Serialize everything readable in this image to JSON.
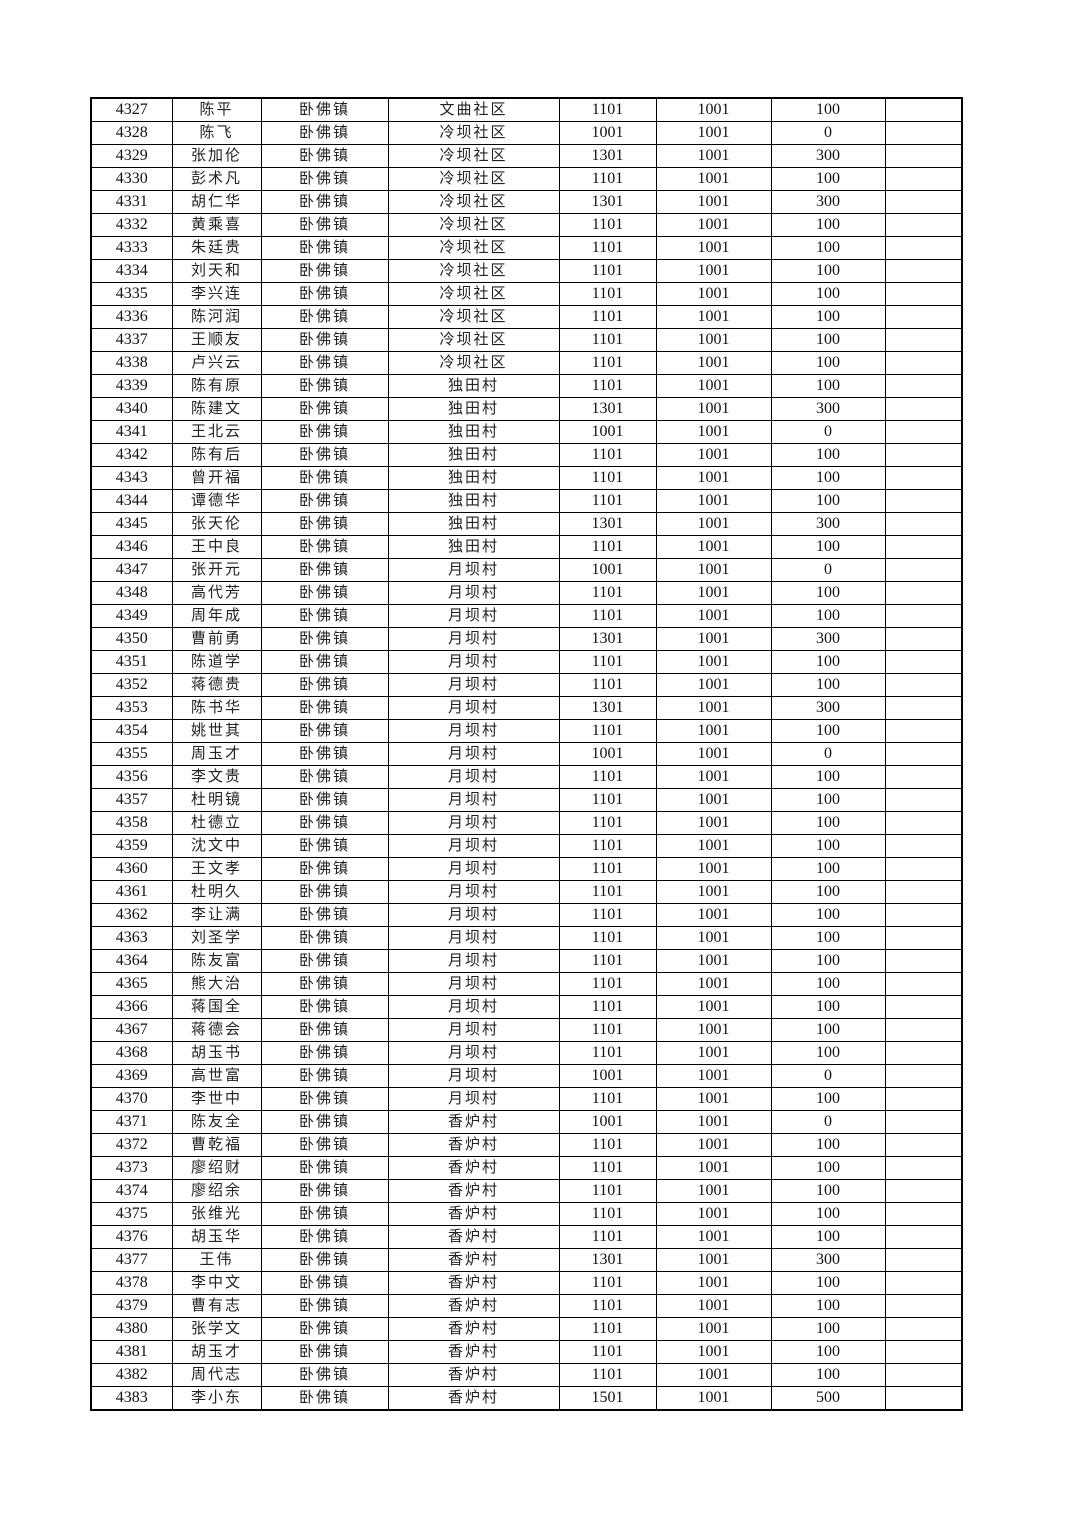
{
  "table": {
    "rows": [
      [
        "4327",
        "陈平",
        "卧佛镇",
        "文曲社区",
        "1101",
        "1001",
        "100",
        ""
      ],
      [
        "4328",
        "陈飞",
        "卧佛镇",
        "冷坝社区",
        "1001",
        "1001",
        "0",
        ""
      ],
      [
        "4329",
        "张加伦",
        "卧佛镇",
        "冷坝社区",
        "1301",
        "1001",
        "300",
        ""
      ],
      [
        "4330",
        "彭术凡",
        "卧佛镇",
        "冷坝社区",
        "1101",
        "1001",
        "100",
        ""
      ],
      [
        "4331",
        "胡仁华",
        "卧佛镇",
        "冷坝社区",
        "1301",
        "1001",
        "300",
        ""
      ],
      [
        "4332",
        "黄乘喜",
        "卧佛镇",
        "冷坝社区",
        "1101",
        "1001",
        "100",
        ""
      ],
      [
        "4333",
        "朱廷贵",
        "卧佛镇",
        "冷坝社区",
        "1101",
        "1001",
        "100",
        ""
      ],
      [
        "4334",
        "刘天和",
        "卧佛镇",
        "冷坝社区",
        "1101",
        "1001",
        "100",
        ""
      ],
      [
        "4335",
        "李兴连",
        "卧佛镇",
        "冷坝社区",
        "1101",
        "1001",
        "100",
        ""
      ],
      [
        "4336",
        "陈河润",
        "卧佛镇",
        "冷坝社区",
        "1101",
        "1001",
        "100",
        ""
      ],
      [
        "4337",
        "王顺友",
        "卧佛镇",
        "冷坝社区",
        "1101",
        "1001",
        "100",
        ""
      ],
      [
        "4338",
        "卢兴云",
        "卧佛镇",
        "冷坝社区",
        "1101",
        "1001",
        "100",
        ""
      ],
      [
        "4339",
        "陈有原",
        "卧佛镇",
        "独田村",
        "1101",
        "1001",
        "100",
        ""
      ],
      [
        "4340",
        "陈建文",
        "卧佛镇",
        "独田村",
        "1301",
        "1001",
        "300",
        ""
      ],
      [
        "4341",
        "王北云",
        "卧佛镇",
        "独田村",
        "1001",
        "1001",
        "0",
        ""
      ],
      [
        "4342",
        "陈有后",
        "卧佛镇",
        "独田村",
        "1101",
        "1001",
        "100",
        ""
      ],
      [
        "4343",
        "曾开福",
        "卧佛镇",
        "独田村",
        "1101",
        "1001",
        "100",
        ""
      ],
      [
        "4344",
        "谭德华",
        "卧佛镇",
        "独田村",
        "1101",
        "1001",
        "100",
        ""
      ],
      [
        "4345",
        "张天伦",
        "卧佛镇",
        "独田村",
        "1301",
        "1001",
        "300",
        ""
      ],
      [
        "4346",
        "王中良",
        "卧佛镇",
        "独田村",
        "1101",
        "1001",
        "100",
        ""
      ],
      [
        "4347",
        "张开元",
        "卧佛镇",
        "月坝村",
        "1001",
        "1001",
        "0",
        ""
      ],
      [
        "4348",
        "高代芳",
        "卧佛镇",
        "月坝村",
        "1101",
        "1001",
        "100",
        ""
      ],
      [
        "4349",
        "周年成",
        "卧佛镇",
        "月坝村",
        "1101",
        "1001",
        "100",
        ""
      ],
      [
        "4350",
        "曹前勇",
        "卧佛镇",
        "月坝村",
        "1301",
        "1001",
        "300",
        ""
      ],
      [
        "4351",
        "陈道学",
        "卧佛镇",
        "月坝村",
        "1101",
        "1001",
        "100",
        ""
      ],
      [
        "4352",
        "蒋德贵",
        "卧佛镇",
        "月坝村",
        "1101",
        "1001",
        "100",
        ""
      ],
      [
        "4353",
        "陈书华",
        "卧佛镇",
        "月坝村",
        "1301",
        "1001",
        "300",
        ""
      ],
      [
        "4354",
        "姚世其",
        "卧佛镇",
        "月坝村",
        "1101",
        "1001",
        "100",
        ""
      ],
      [
        "4355",
        "周玉才",
        "卧佛镇",
        "月坝村",
        "1001",
        "1001",
        "0",
        ""
      ],
      [
        "4356",
        "李文贵",
        "卧佛镇",
        "月坝村",
        "1101",
        "1001",
        "100",
        ""
      ],
      [
        "4357",
        "杜明镜",
        "卧佛镇",
        "月坝村",
        "1101",
        "1001",
        "100",
        ""
      ],
      [
        "4358",
        "杜德立",
        "卧佛镇",
        "月坝村",
        "1101",
        "1001",
        "100",
        ""
      ],
      [
        "4359",
        "沈文中",
        "卧佛镇",
        "月坝村",
        "1101",
        "1001",
        "100",
        ""
      ],
      [
        "4360",
        "王文孝",
        "卧佛镇",
        "月坝村",
        "1101",
        "1001",
        "100",
        ""
      ],
      [
        "4361",
        "杜明久",
        "卧佛镇",
        "月坝村",
        "1101",
        "1001",
        "100",
        ""
      ],
      [
        "4362",
        "李让满",
        "卧佛镇",
        "月坝村",
        "1101",
        "1001",
        "100",
        ""
      ],
      [
        "4363",
        "刘圣学",
        "卧佛镇",
        "月坝村",
        "1101",
        "1001",
        "100",
        ""
      ],
      [
        "4364",
        "陈友富",
        "卧佛镇",
        "月坝村",
        "1101",
        "1001",
        "100",
        ""
      ],
      [
        "4365",
        "熊大治",
        "卧佛镇",
        "月坝村",
        "1101",
        "1001",
        "100",
        ""
      ],
      [
        "4366",
        "蒋国全",
        "卧佛镇",
        "月坝村",
        "1101",
        "1001",
        "100",
        ""
      ],
      [
        "4367",
        "蒋德会",
        "卧佛镇",
        "月坝村",
        "1101",
        "1001",
        "100",
        ""
      ],
      [
        "4368",
        "胡玉书",
        "卧佛镇",
        "月坝村",
        "1101",
        "1001",
        "100",
        ""
      ],
      [
        "4369",
        "高世富",
        "卧佛镇",
        "月坝村",
        "1001",
        "1001",
        "0",
        ""
      ],
      [
        "4370",
        "李世中",
        "卧佛镇",
        "月坝村",
        "1101",
        "1001",
        "100",
        ""
      ],
      [
        "4371",
        "陈友全",
        "卧佛镇",
        "香炉村",
        "1001",
        "1001",
        "0",
        ""
      ],
      [
        "4372",
        "曹乾福",
        "卧佛镇",
        "香炉村",
        "1101",
        "1001",
        "100",
        ""
      ],
      [
        "4373",
        "廖绍财",
        "卧佛镇",
        "香炉村",
        "1101",
        "1001",
        "100",
        ""
      ],
      [
        "4374",
        "廖绍余",
        "卧佛镇",
        "香炉村",
        "1101",
        "1001",
        "100",
        ""
      ],
      [
        "4375",
        "张维光",
        "卧佛镇",
        "香炉村",
        "1101",
        "1001",
        "100",
        ""
      ],
      [
        "4376",
        "胡玉华",
        "卧佛镇",
        "香炉村",
        "1101",
        "1001",
        "100",
        ""
      ],
      [
        "4377",
        "王伟",
        "卧佛镇",
        "香炉村",
        "1301",
        "1001",
        "300",
        ""
      ],
      [
        "4378",
        "李中文",
        "卧佛镇",
        "香炉村",
        "1101",
        "1001",
        "100",
        ""
      ],
      [
        "4379",
        "曹有志",
        "卧佛镇",
        "香炉村",
        "1101",
        "1001",
        "100",
        ""
      ],
      [
        "4380",
        "张学文",
        "卧佛镇",
        "香炉村",
        "1101",
        "1001",
        "100",
        ""
      ],
      [
        "4381",
        "胡玉才",
        "卧佛镇",
        "香炉村",
        "1101",
        "1001",
        "100",
        ""
      ],
      [
        "4382",
        "周代志",
        "卧佛镇",
        "香炉村",
        "1101",
        "1001",
        "100",
        ""
      ],
      [
        "4383",
        "李小东",
        "卧佛镇",
        "香炉村",
        "1501",
        "1001",
        "500",
        ""
      ]
    ]
  }
}
